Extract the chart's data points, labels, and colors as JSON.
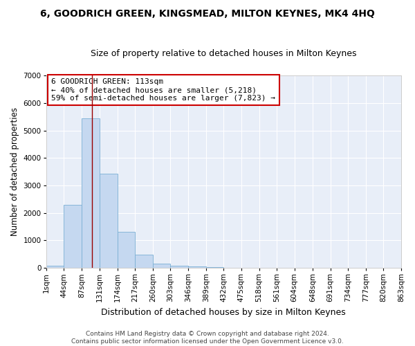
{
  "title": "6, GOODRICH GREEN, KINGSMEAD, MILTON KEYNES, MK4 4HQ",
  "subtitle": "Size of property relative to detached houses in Milton Keynes",
  "xlabel": "Distribution of detached houses by size in Milton Keynes",
  "ylabel": "Number of detached properties",
  "footnote1": "Contains HM Land Registry data © Crown copyright and database right 2024.",
  "footnote2": "Contains public sector information licensed under the Open Government Licence v3.0.",
  "bar_color": "#c5d8f0",
  "bar_edge_color": "#7aafd4",
  "background_color": "#e8eef8",
  "grid_color": "#ffffff",
  "fig_background": "#ffffff",
  "vline_color": "#990000",
  "annotation_box_edgecolor": "#cc0000",
  "annotation_text": "6 GOODRICH GREEN: 113sqm\n← 40% of detached houses are smaller (5,218)\n59% of semi-detached houses are larger (7,823) →",
  "property_sqm": 113,
  "bin_edges": [
    1,
    44,
    87,
    131,
    174,
    217,
    260,
    303,
    346,
    389,
    432,
    475,
    518,
    561,
    604,
    648,
    691,
    734,
    777,
    820,
    863
  ],
  "bar_heights": [
    80,
    2300,
    5450,
    3430,
    1310,
    470,
    155,
    90,
    60,
    40,
    0,
    0,
    0,
    0,
    0,
    0,
    0,
    0,
    0,
    0
  ],
  "ylim": [
    0,
    7000
  ],
  "yticks": [
    0,
    1000,
    2000,
    3000,
    4000,
    5000,
    6000,
    7000
  ],
  "title_fontsize": 10,
  "subtitle_fontsize": 9,
  "xlabel_fontsize": 9,
  "ylabel_fontsize": 8.5,
  "tick_fontsize": 7.5,
  "footnote_fontsize": 6.5,
  "annotation_fontsize": 8
}
